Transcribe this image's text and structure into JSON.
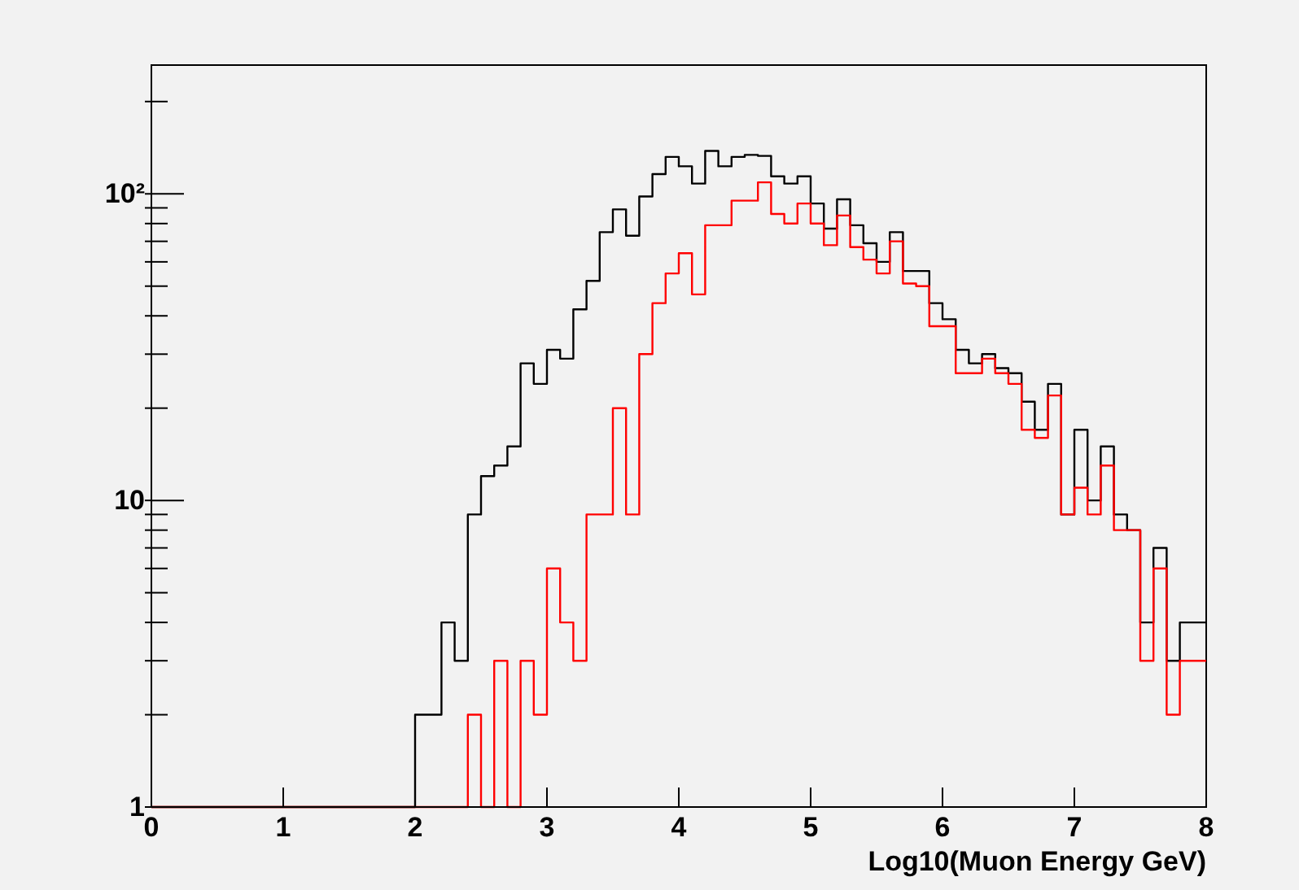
{
  "chart_data": {
    "type": "histogram",
    "xlabel": "Log10(Muon Energy  GeV)",
    "bins": [
      0,
      0.1,
      0.2,
      0.3,
      0.4,
      0.5,
      0.6,
      0.7,
      0.8,
      0.9,
      1,
      1.1,
      1.2,
      1.3,
      1.4,
      1.5,
      1.6,
      1.7,
      1.8,
      1.9,
      2,
      2.1,
      2.2,
      2.3,
      2.4,
      2.5,
      2.6,
      2.7,
      2.8,
      2.9,
      3,
      3.1,
      3.2,
      3.3,
      3.4,
      3.5,
      3.6,
      3.7,
      3.8,
      3.9,
      4,
      4.1,
      4.2,
      4.3,
      4.4,
      4.5,
      4.6,
      4.7,
      4.8,
      4.9,
      5,
      5.1,
      5.2,
      5.3,
      5.4,
      5.5,
      5.6,
      5.7,
      5.8,
      5.9,
      6,
      6.1,
      6.2,
      6.3,
      6.4,
      6.5,
      6.6,
      6.7,
      6.8,
      6.9,
      7,
      7.1,
      7.2,
      7.3,
      7.4,
      7.5,
      7.6,
      7.7,
      7.8,
      7.9,
      8
    ],
    "series": [
      {
        "color": "#000000",
        "values": [
          null,
          null,
          null,
          null,
          null,
          null,
          null,
          null,
          null,
          null,
          null,
          null,
          null,
          null,
          null,
          null,
          null,
          null,
          null,
          null,
          2,
          2,
          4,
          3,
          9,
          12,
          13,
          15,
          28,
          24,
          31,
          29,
          42,
          52,
          75,
          89,
          73,
          98,
          116,
          132,
          123,
          108,
          138,
          123,
          132,
          134,
          133,
          114,
          108,
          114,
          93,
          77,
          96,
          79,
          69,
          60,
          75,
          56,
          56,
          44,
          39,
          31,
          28,
          30,
          27,
          26,
          21,
          17,
          24,
          9,
          17,
          10,
          15,
          9,
          8,
          4,
          7,
          3,
          4,
          4
        ]
      },
      {
        "color": "#ff0000",
        "values": [
          null,
          null,
          null,
          null,
          null,
          null,
          null,
          null,
          null,
          null,
          null,
          null,
          null,
          null,
          null,
          null,
          null,
          null,
          null,
          null,
          null,
          null,
          null,
          null,
          2,
          null,
          3,
          null,
          3,
          2,
          6,
          4,
          3,
          9,
          9,
          20,
          9,
          30,
          44,
          55,
          64,
          47,
          79,
          79,
          95,
          95,
          109,
          86,
          80,
          93,
          80,
          68,
          85,
          67,
          61,
          55,
          70,
          51,
          50,
          37,
          37,
          26,
          26,
          29,
          26,
          24,
          17,
          16,
          22,
          9,
          11,
          9,
          13,
          8,
          8,
          3,
          6,
          2,
          3,
          3
        ]
      }
    ],
    "xlim": [
      0,
      8
    ],
    "xticks": [
      0,
      1,
      2,
      3,
      4,
      5,
      6,
      7,
      8
    ],
    "ylim": [
      1,
      263
    ],
    "log": "y",
    "yticks": [
      1,
      {
        "value": 2,
        "label": null
      },
      {
        "value": 3,
        "label": null
      },
      {
        "value": 4,
        "label": null
      },
      {
        "value": 5,
        "label": null
      },
      {
        "value": 6,
        "label": null
      },
      {
        "value": 7,
        "label": null
      },
      {
        "value": 8,
        "label": null
      },
      {
        "value": 9,
        "label": null
      },
      10,
      {
        "value": 20,
        "label": null
      },
      {
        "value": 30,
        "label": null
      },
      {
        "value": 40,
        "label": null
      },
      {
        "value": 50,
        "label": null
      },
      {
        "value": 60,
        "label": null
      },
      {
        "value": 70,
        "label": null
      },
      {
        "value": 80,
        "label": null
      },
      {
        "value": 90,
        "label": null
      },
      {
        "value": 100,
        "label": "10²"
      },
      {
        "value": 200,
        "label": null
      }
    ],
    "grid": false
  }
}
